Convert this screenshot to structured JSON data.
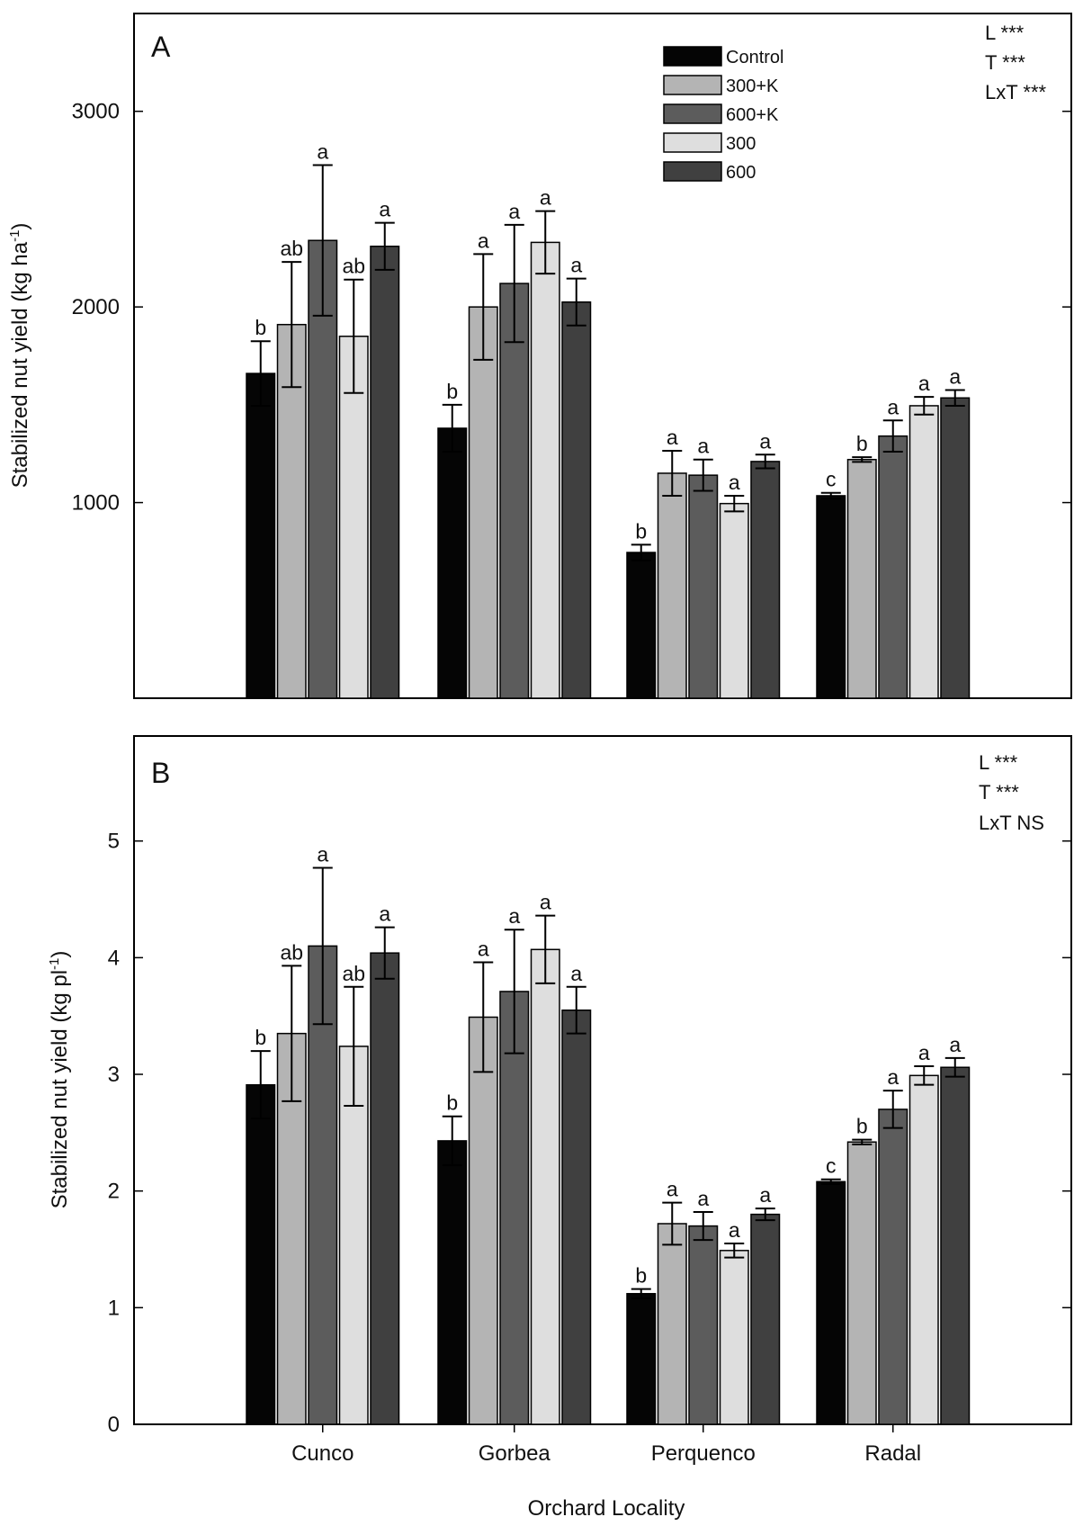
{
  "colors": {
    "Control": "#050505",
    "300+K": "#b4b4b4",
    "600+K": "#5c5c5c",
    "300": "#dedede",
    "600": "#404040"
  },
  "legend": {
    "entries": [
      "Control",
      "300+K",
      "600+K",
      "300",
      "600"
    ]
  },
  "x_title": "Orchard Locality",
  "chart_data": [
    {
      "type": "bar",
      "panel": "A",
      "categories": [
        "Cunco",
        "Gorbea",
        "Perquenco",
        "Radal"
      ],
      "ylabel": "Stabilized nut yield (kg ha",
      "ylabel_sup": "-1",
      "ylabel_tail": ")",
      "ylim": [
        0,
        3500
      ],
      "yticks": [
        1000,
        2000,
        3000
      ],
      "stats": [
        "L ***",
        "T ***",
        "LxT ***"
      ],
      "series": [
        {
          "name": "Control",
          "values": [
            1660,
            1380,
            745,
            1035
          ],
          "errors": [
            165,
            120,
            40,
            15
          ],
          "letters": [
            "b",
            "b",
            "b",
            "c"
          ]
        },
        {
          "name": "300+K",
          "values": [
            1910,
            2000,
            1150,
            1220
          ],
          "errors": [
            320,
            270,
            115,
            12
          ],
          "letters": [
            "ab",
            "a",
            "a",
            "b"
          ]
        },
        {
          "name": "600+K",
          "values": [
            2340,
            2120,
            1140,
            1340
          ],
          "errors": [
            385,
            300,
            80,
            80
          ],
          "letters": [
            "a",
            "a",
            "a",
            "a"
          ]
        },
        {
          "name": "300",
          "values": [
            1850,
            2330,
            995,
            1495
          ],
          "errors": [
            290,
            160,
            40,
            45
          ],
          "letters": [
            "ab",
            "a",
            "a",
            "a"
          ]
        },
        {
          "name": "600",
          "values": [
            2310,
            2025,
            1210,
            1535
          ],
          "errors": [
            120,
            120,
            35,
            40
          ],
          "letters": [
            "a",
            "a",
            "a",
            "a"
          ]
        }
      ]
    },
    {
      "type": "bar",
      "panel": "B",
      "categories": [
        "Cunco",
        "Gorbea",
        "Perquenco",
        "Radal"
      ],
      "ylabel": "Stabilized nut yield (kg pl",
      "ylabel_sup": "-1",
      "ylabel_tail": ")",
      "ylim": [
        0,
        5.9
      ],
      "yticks": [
        0,
        1,
        2,
        3,
        4,
        5
      ],
      "stats": [
        "L ***",
        "T ***",
        "LxT NS"
      ],
      "series": [
        {
          "name": "Control",
          "values": [
            2.91,
            2.43,
            1.12,
            2.08
          ],
          "errors": [
            0.29,
            0.21,
            0.04,
            0.02
          ],
          "letters": [
            "b",
            "b",
            "b",
            "c"
          ]
        },
        {
          "name": "300+K",
          "values": [
            3.35,
            3.49,
            1.72,
            2.42
          ],
          "errors": [
            0.58,
            0.47,
            0.18,
            0.02
          ],
          "letters": [
            "ab",
            "a",
            "a",
            "b"
          ]
        },
        {
          "name": "600+K",
          "values": [
            4.1,
            3.71,
            1.7,
            2.7
          ],
          "errors": [
            0.67,
            0.53,
            0.12,
            0.16
          ],
          "letters": [
            "a",
            "a",
            "a",
            "a"
          ]
        },
        {
          "name": "300",
          "values": [
            3.24,
            4.07,
            1.49,
            2.99
          ],
          "errors": [
            0.51,
            0.29,
            0.06,
            0.08
          ],
          "letters": [
            "ab",
            "a",
            "a",
            "a"
          ]
        },
        {
          "name": "600",
          "values": [
            4.04,
            3.55,
            1.8,
            3.06
          ],
          "errors": [
            0.22,
            0.2,
            0.05,
            0.08
          ],
          "letters": [
            "a",
            "a",
            "a",
            "a"
          ]
        }
      ]
    }
  ]
}
